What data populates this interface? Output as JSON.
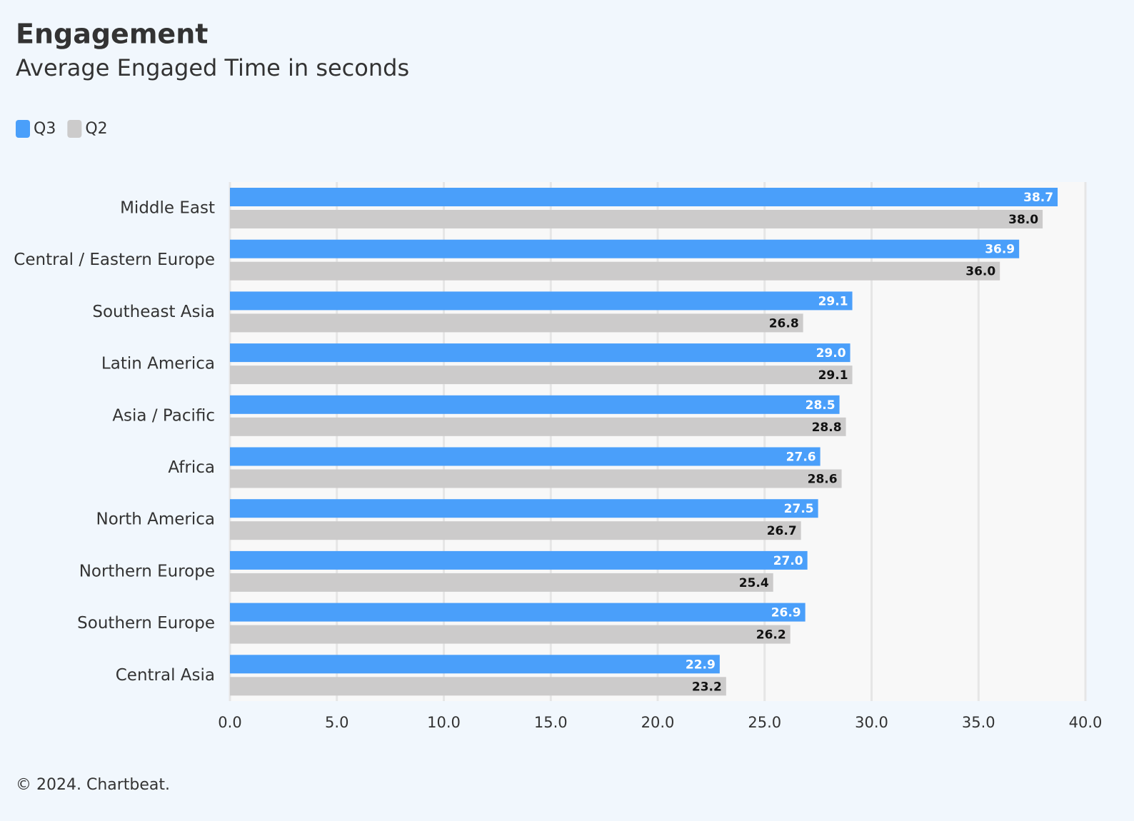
{
  "chart_data": {
    "type": "bar",
    "title": "Engagement",
    "subtitle": "Average Engaged Time in seconds",
    "source": "© 2024. Chartbeat.",
    "categories": [
      "Middle East",
      "Central / Eastern Europe",
      "Southeast Asia",
      "Latin America",
      "Asia / Pacific",
      "Africa",
      "North America",
      "Northern Europe",
      "Southern Europe",
      "Central Asia"
    ],
    "series": [
      {
        "name": "Q3",
        "color": "#4a9ffa",
        "values": [
          38.7,
          36.9,
          29.1,
          29.0,
          28.5,
          27.6,
          27.5,
          27.0,
          26.9,
          22.9
        ],
        "value_labels": [
          "38.7",
          "36.9",
          "29.1",
          "29.0",
          "28.5",
          "27.6",
          "27.5",
          "27.0",
          "26.9",
          "22.9"
        ]
      },
      {
        "name": "Q2",
        "color": "#cccbcb",
        "values": [
          38.0,
          36.0,
          26.8,
          29.1,
          28.8,
          28.6,
          26.7,
          25.4,
          26.2,
          23.2
        ],
        "value_labels": [
          "38.0",
          "36.0",
          "26.8",
          "29.1",
          "28.8",
          "28.6",
          "26.7",
          "25.4",
          "26.2",
          "23.2"
        ]
      }
    ],
    "xlim": [
      0,
      40
    ],
    "xticks": [
      {
        "value": 0,
        "label": "0.0"
      },
      {
        "value": 5,
        "label": "5.0"
      },
      {
        "value": 10,
        "label": "10.0"
      },
      {
        "value": 15,
        "label": "15.0"
      },
      {
        "value": 20,
        "label": "20.0"
      },
      {
        "value": 25,
        "label": "25.0"
      },
      {
        "value": 30,
        "label": "30.0"
      },
      {
        "value": 35,
        "label": "35.0"
      },
      {
        "value": 40,
        "label": "40.0"
      }
    ],
    "grid": true
  }
}
